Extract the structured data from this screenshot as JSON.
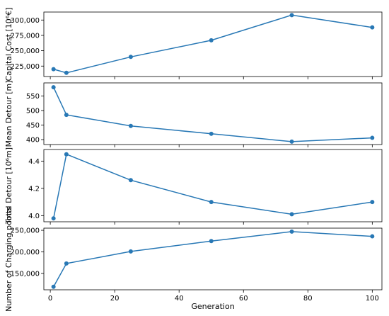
{
  "chart_data": {
    "type": "line",
    "layout": "stacked-subplots-shared-x",
    "color": "#2878b5",
    "xlabel": "Generation",
    "x_ticks": [
      0,
      20,
      40,
      60,
      80,
      100
    ],
    "xlim": [
      -2,
      103
    ],
    "grid": false,
    "panels": [
      {
        "ylabel": "Capital Cost [10⁶€]",
        "y_ticks": [
          225000,
          250000,
          275000,
          300000
        ],
        "y_tick_labels": [
          "225,000",
          "250,000",
          "275,000",
          "300,000"
        ],
        "ylim": [
          208000,
          313000
        ],
        "x": [
          1,
          5,
          25,
          50,
          75,
          100
        ],
        "y": [
          220000,
          214000,
          240000,
          267000,
          308000,
          288000
        ]
      },
      {
        "ylabel": "Mean Detour [m]",
        "y_ticks": [
          400,
          450,
          500,
          550
        ],
        "y_tick_labels": [
          "400",
          "450",
          "500",
          "550"
        ],
        "ylim": [
          383,
          595
        ],
        "x": [
          1,
          5,
          25,
          50,
          75,
          100
        ],
        "y": [
          580,
          485,
          447,
          420,
          393,
          406
        ]
      },
      {
        "ylabel": "Total Detour [10⁶m]",
        "y_ticks": [
          4.0,
          4.2,
          4.4
        ],
        "y_tick_labels": [
          "4.0",
          "4.2",
          "4.4"
        ],
        "ylim": [
          3.955,
          4.485
        ],
        "x": [
          1,
          5,
          25,
          50,
          75,
          100
        ],
        "y": [
          3.98,
          4.45,
          4.26,
          4.1,
          4.01,
          4.1
        ]
      },
      {
        "ylabel": "Number of Charging points",
        "y_ticks": [
          150000,
          200000,
          250000
        ],
        "y_tick_labels": [
          "150,000",
          "200,000",
          "250,000"
        ],
        "ylim": [
          112000,
          255000
        ],
        "x": [
          1,
          5,
          25,
          50,
          75,
          100
        ],
        "y": [
          119000,
          173000,
          201000,
          225000,
          247000,
          236000
        ]
      }
    ]
  }
}
